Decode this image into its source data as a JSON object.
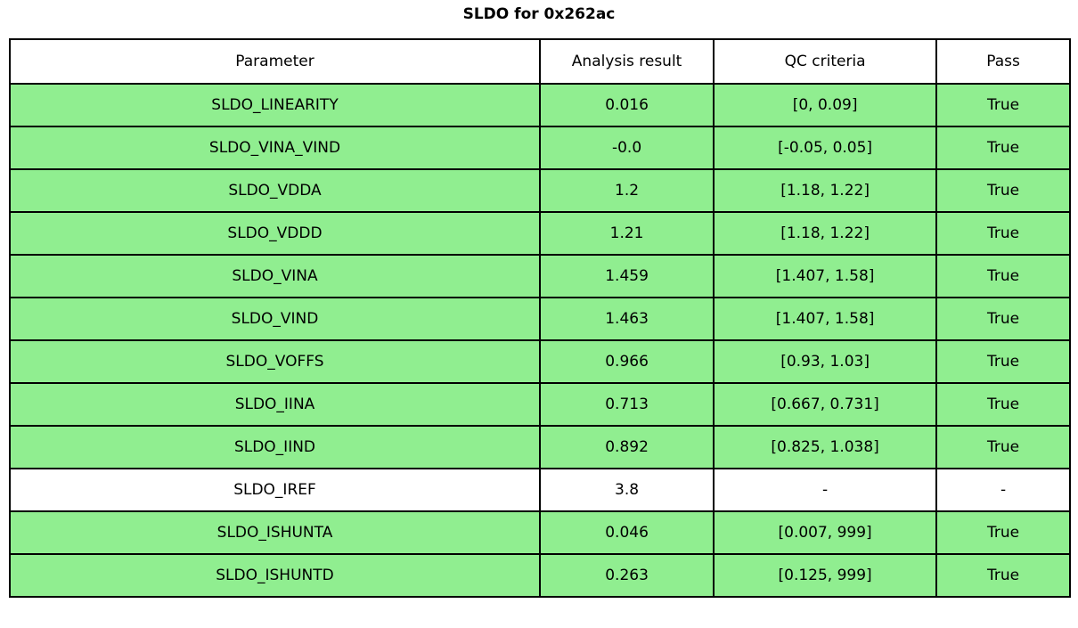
{
  "title": "SLDO for 0x262ac",
  "colors": {
    "pass_green": "#90EE90",
    "neutral_white": "#ffffff",
    "border_black": "#000000"
  },
  "chart_data": {
    "type": "table",
    "title": "SLDO for 0x262ac",
    "columns": [
      "Parameter",
      "Analysis result",
      "QC criteria",
      "Pass"
    ],
    "rows": [
      {
        "parameter": "SLDO_LINEARITY",
        "result": "0.016",
        "qc": "[0, 0.09]",
        "pass": "True",
        "highlight": true
      },
      {
        "parameter": "SLDO_VINA_VIND",
        "result": "-0.0",
        "qc": "[-0.05, 0.05]",
        "pass": "True",
        "highlight": true
      },
      {
        "parameter": "SLDO_VDDA",
        "result": "1.2",
        "qc": "[1.18, 1.22]",
        "pass": "True",
        "highlight": true
      },
      {
        "parameter": "SLDO_VDDD",
        "result": "1.21",
        "qc": "[1.18, 1.22]",
        "pass": "True",
        "highlight": true
      },
      {
        "parameter": "SLDO_VINA",
        "result": "1.459",
        "qc": "[1.407, 1.58]",
        "pass": "True",
        "highlight": true
      },
      {
        "parameter": "SLDO_VIND",
        "result": "1.463",
        "qc": "[1.407, 1.58]",
        "pass": "True",
        "highlight": true
      },
      {
        "parameter": "SLDO_VOFFS",
        "result": "0.966",
        "qc": "[0.93, 1.03]",
        "pass": "True",
        "highlight": true
      },
      {
        "parameter": "SLDO_IINA",
        "result": "0.713",
        "qc": "[0.667, 0.731]",
        "pass": "True",
        "highlight": true
      },
      {
        "parameter": "SLDO_IIND",
        "result": "0.892",
        "qc": "[0.825, 1.038]",
        "pass": "True",
        "highlight": true
      },
      {
        "parameter": "SLDO_IREF",
        "result": "3.8",
        "qc": "-",
        "pass": "-",
        "highlight": false
      },
      {
        "parameter": "SLDO_ISHUNTA",
        "result": "0.046",
        "qc": "[0.007, 999]",
        "pass": "True",
        "highlight": true
      },
      {
        "parameter": "SLDO_ISHUNTD",
        "result": "0.263",
        "qc": "[0.125, 999]",
        "pass": "True",
        "highlight": true
      }
    ]
  }
}
